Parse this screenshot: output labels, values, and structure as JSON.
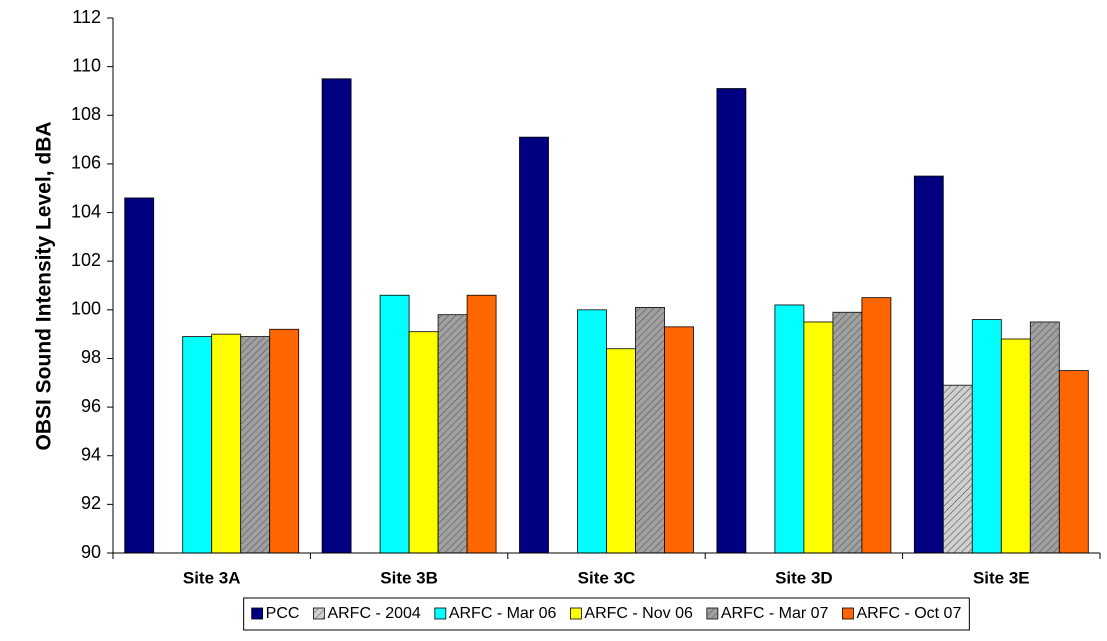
{
  "chart_data": {
    "type": "bar",
    "y_label": "OBSI Sound Intensity Level, dBA",
    "categories": [
      "Site 3A",
      "Site 3B",
      "Site 3C",
      "Site 3D",
      "Site 3E"
    ],
    "series": [
      {
        "name": "PCC",
        "color": "#000080",
        "values": [
          104.6,
          109.5,
          107.1,
          109.1,
          105.5
        ]
      },
      {
        "name": "ARFC - 2004",
        "color": "#d0d0d0",
        "hatch": true,
        "values": [
          null,
          null,
          null,
          null,
          96.9
        ]
      },
      {
        "name": "ARFC - Mar 06",
        "color": "#00ffff",
        "values": [
          98.9,
          100.6,
          100.0,
          100.2,
          99.6
        ]
      },
      {
        "name": "ARFC - Nov 06",
        "color": "#ffff00",
        "values": [
          99.0,
          99.1,
          98.4,
          99.5,
          98.8
        ]
      },
      {
        "name": "ARFC - Mar 07",
        "color": "#a0a0a0",
        "hatch": true,
        "values": [
          98.9,
          99.8,
          100.1,
          99.9,
          99.5
        ]
      },
      {
        "name": "ARFC - Oct 07",
        "color": "#ff6600",
        "values": [
          99.2,
          100.6,
          99.3,
          100.5,
          97.5
        ]
      }
    ],
    "ylim": [
      90,
      112
    ],
    "yticks": [
      90,
      92,
      94,
      96,
      98,
      100,
      102,
      104,
      106,
      108,
      110,
      112
    ],
    "grid": false,
    "legend": "bottom"
  }
}
